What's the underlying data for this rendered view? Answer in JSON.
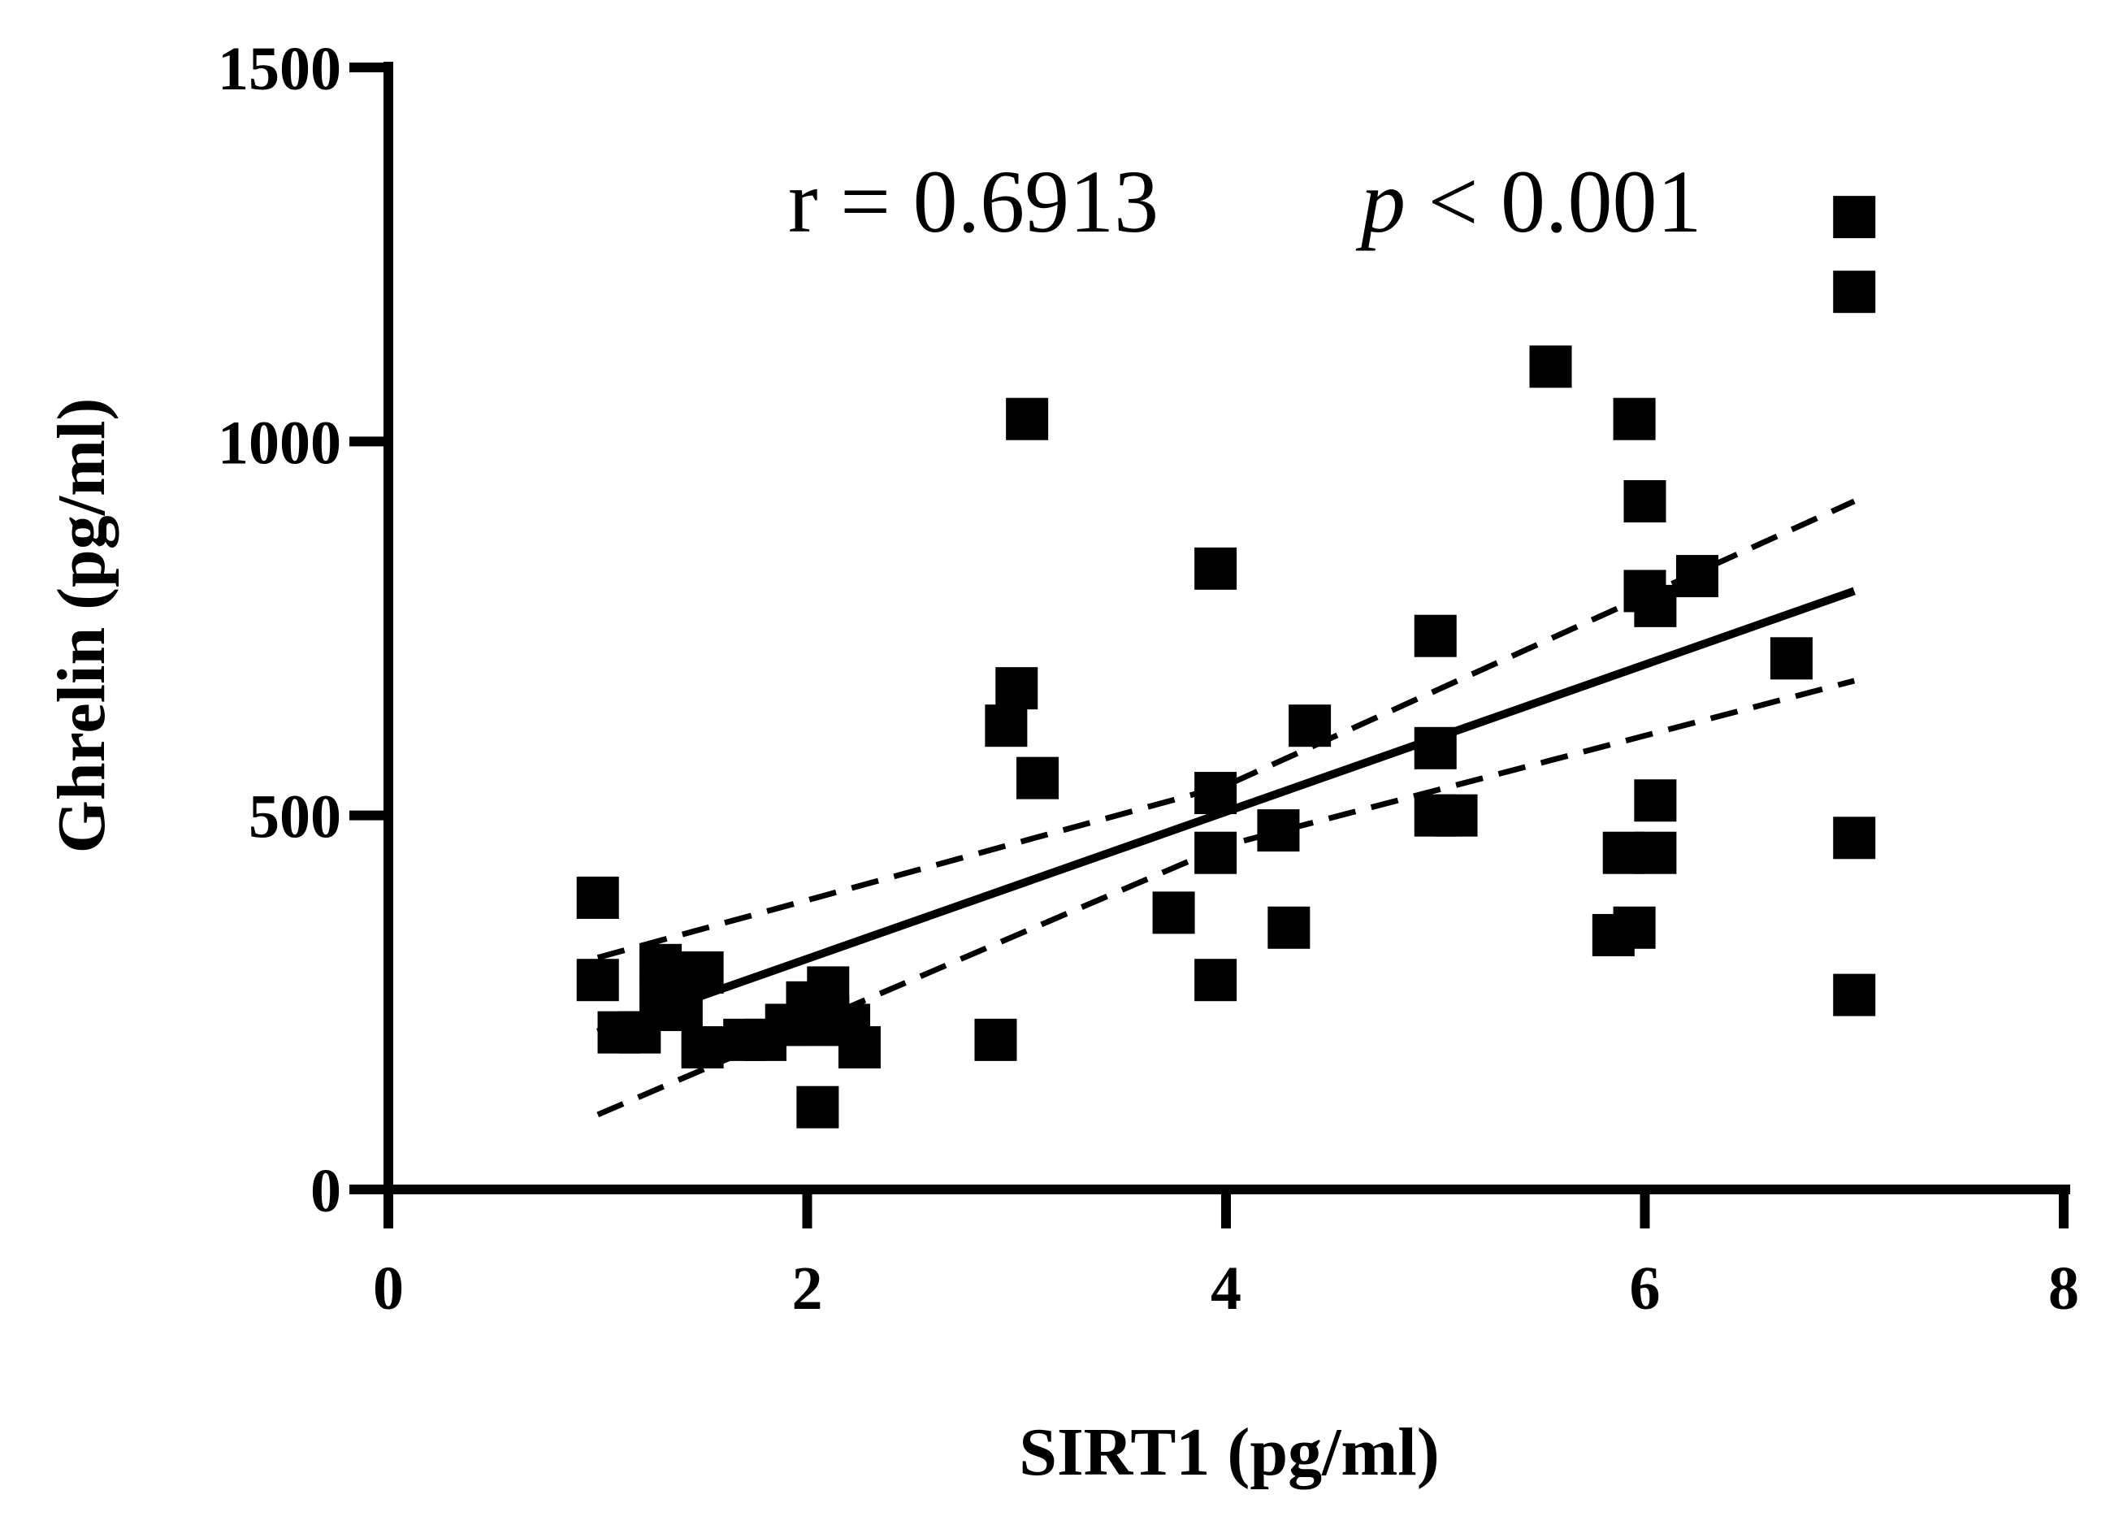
{
  "chart_data": {
    "type": "scatter",
    "title": "",
    "xlabel": "SIRT1 (pg/ml)",
    "ylabel": "Ghrelin (pg/ml)",
    "xlim": [
      0,
      8
    ],
    "ylim": [
      0,
      1500
    ],
    "xticks": [
      0,
      2,
      4,
      6,
      8
    ],
    "yticks": [
      0,
      500,
      1000,
      1500
    ],
    "xtick_labels": [
      "0",
      "2",
      "4",
      "6",
      "8"
    ],
    "ytick_labels": [
      "0",
      "500",
      "1000",
      "1500"
    ],
    "annotation": {
      "r_text": "r = 0.6913",
      "p_symbol": "p",
      "p_text": " < 0.001"
    },
    "series": [
      {
        "name": "observations",
        "marker": "square",
        "points": [
          [
            1.0,
            390
          ],
          [
            1.0,
            280
          ],
          [
            1.1,
            210
          ],
          [
            1.2,
            210
          ],
          [
            1.3,
            300
          ],
          [
            1.3,
            260
          ],
          [
            1.4,
            240
          ],
          [
            1.5,
            290
          ],
          [
            1.5,
            190
          ],
          [
            1.7,
            200
          ],
          [
            1.8,
            200
          ],
          [
            1.9,
            220
          ],
          [
            2.0,
            250
          ],
          [
            2.0,
            220
          ],
          [
            2.05,
            110
          ],
          [
            2.1,
            270
          ],
          [
            2.1,
            230
          ],
          [
            2.2,
            220
          ],
          [
            2.25,
            190
          ],
          [
            2.9,
            200
          ],
          [
            2.95,
            620
          ],
          [
            3.0,
            670
          ],
          [
            3.05,
            1030
          ],
          [
            3.1,
            550
          ],
          [
            3.75,
            370
          ],
          [
            3.95,
            830
          ],
          [
            3.95,
            280
          ],
          [
            3.95,
            530
          ],
          [
            3.95,
            450
          ],
          [
            4.25,
            480
          ],
          [
            4.3,
            350
          ],
          [
            4.4,
            620
          ],
          [
            5.0,
            740
          ],
          [
            5.0,
            590
          ],
          [
            5.0,
            500
          ],
          [
            5.1,
            500
          ],
          [
            5.55,
            1100
          ],
          [
            5.85,
            340
          ],
          [
            5.9,
            450
          ],
          [
            5.95,
            350
          ],
          [
            5.95,
            1030
          ],
          [
            6.0,
            920
          ],
          [
            6.0,
            800
          ],
          [
            6.05,
            450
          ],
          [
            6.05,
            780
          ],
          [
            6.05,
            520
          ],
          [
            6.25,
            820
          ],
          [
            6.7,
            710
          ],
          [
            7.0,
            1300
          ],
          [
            7.0,
            1200
          ],
          [
            7.0,
            260
          ],
          [
            7.0,
            470
          ]
        ]
      }
    ],
    "fit": {
      "x": [
        1.0,
        7.0
      ],
      "y": [
        210,
        800
      ]
    },
    "ci_upper": {
      "x": [
        1.0,
        4.0,
        7.0
      ],
      "y": [
        310,
        540,
        920
      ]
    },
    "ci_lower": {
      "x": [
        1.0,
        4.0,
        7.0
      ],
      "y": [
        100,
        460,
        680
      ]
    }
  }
}
